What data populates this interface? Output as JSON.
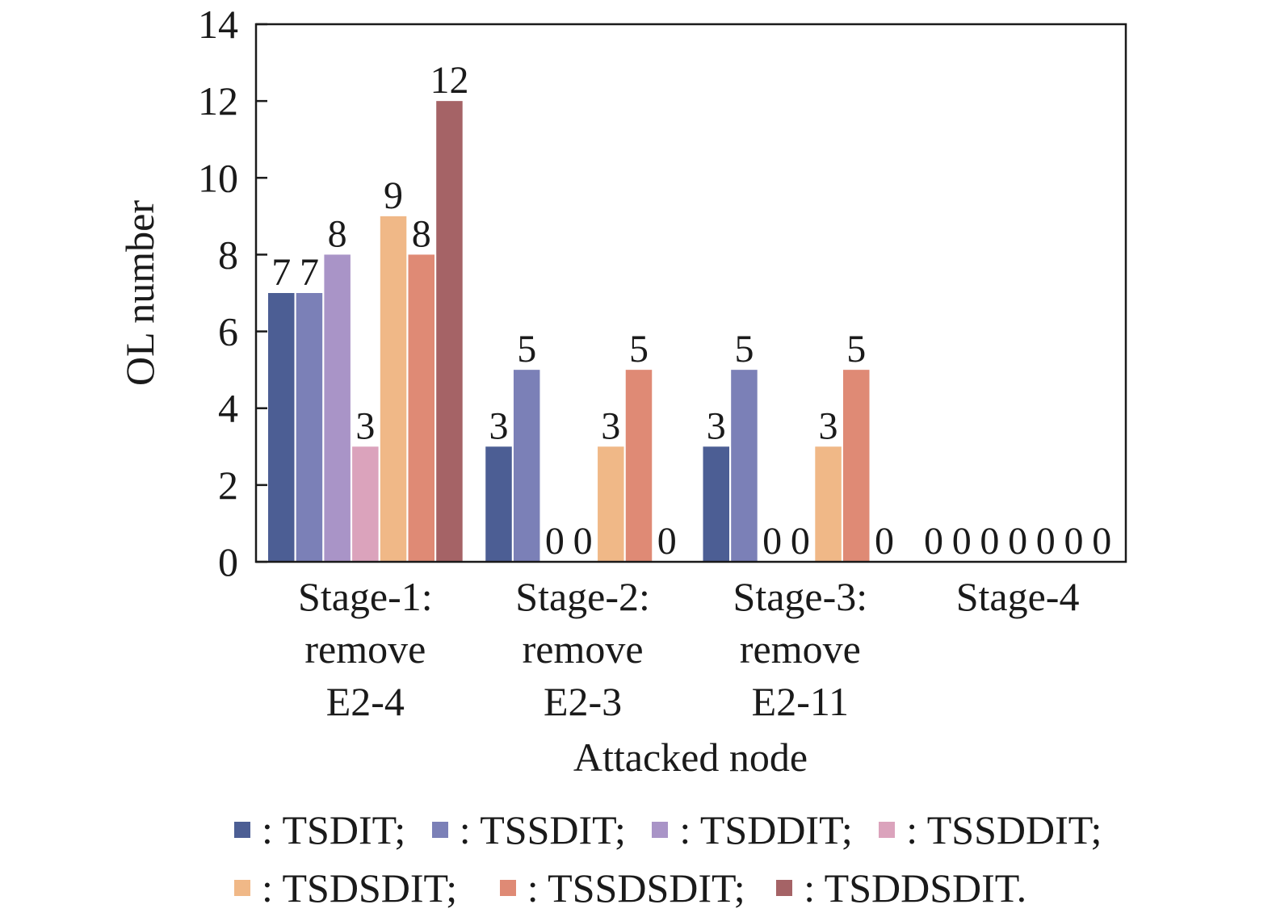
{
  "chart_data": {
    "type": "bar",
    "xlabel": "Attacked node",
    "ylabel": "OL number",
    "ylim": [
      0,
      14
    ],
    "yticks": [
      0,
      2,
      4,
      6,
      8,
      10,
      12,
      14
    ],
    "grid": false,
    "legend_position": "bottom",
    "categories": [
      [
        "Stage-1:",
        "remove",
        "E2-4"
      ],
      [
        "Stage-2:",
        "remove",
        "E2-3"
      ],
      [
        "Stage-3:",
        "remove",
        "E2-11"
      ],
      [
        "Stage-4"
      ]
    ],
    "series": [
      {
        "name": "TSDIT",
        "color": "#4c5e94",
        "values": [
          7,
          3,
          3,
          0
        ]
      },
      {
        "name": "TSSDIT",
        "color": "#7b80b7",
        "values": [
          7,
          5,
          5,
          0
        ]
      },
      {
        "name": "TSDDIT",
        "color": "#a994c7",
        "values": [
          8,
          0,
          0,
          0
        ]
      },
      {
        "name": "TSSDDIT",
        "color": "#dba3bc",
        "values": [
          3,
          0,
          0,
          0
        ]
      },
      {
        "name": "TSDSDIT",
        "color": "#f0b887",
        "values": [
          9,
          3,
          3,
          0
        ]
      },
      {
        "name": "TSSDSDIT",
        "color": "#df8a75",
        "values": [
          8,
          5,
          5,
          0
        ]
      },
      {
        "name": "TSDDSDIT",
        "color": "#a56366",
        "values": [
          12,
          0,
          0,
          0
        ]
      }
    ]
  },
  "legend": {
    "rows": [
      [
        {
          "text": ": TSDIT;",
          "color": "#4c5e94"
        },
        {
          "text": ": TSSDIT;",
          "color": "#7b80b7"
        },
        {
          "text": ": TSDDIT;",
          "color": "#a994c7"
        },
        {
          "text": ": TSSDDIT;",
          "color": "#dba3bc"
        }
      ],
      [
        {
          "text": ": TSDSDIT;",
          "color": "#f0b887"
        },
        {
          "text": ": TSSDSDIT;",
          "color": "#df8a75"
        },
        {
          "text": ": TSDDSDIT.",
          "color": "#a56366"
        }
      ]
    ]
  }
}
